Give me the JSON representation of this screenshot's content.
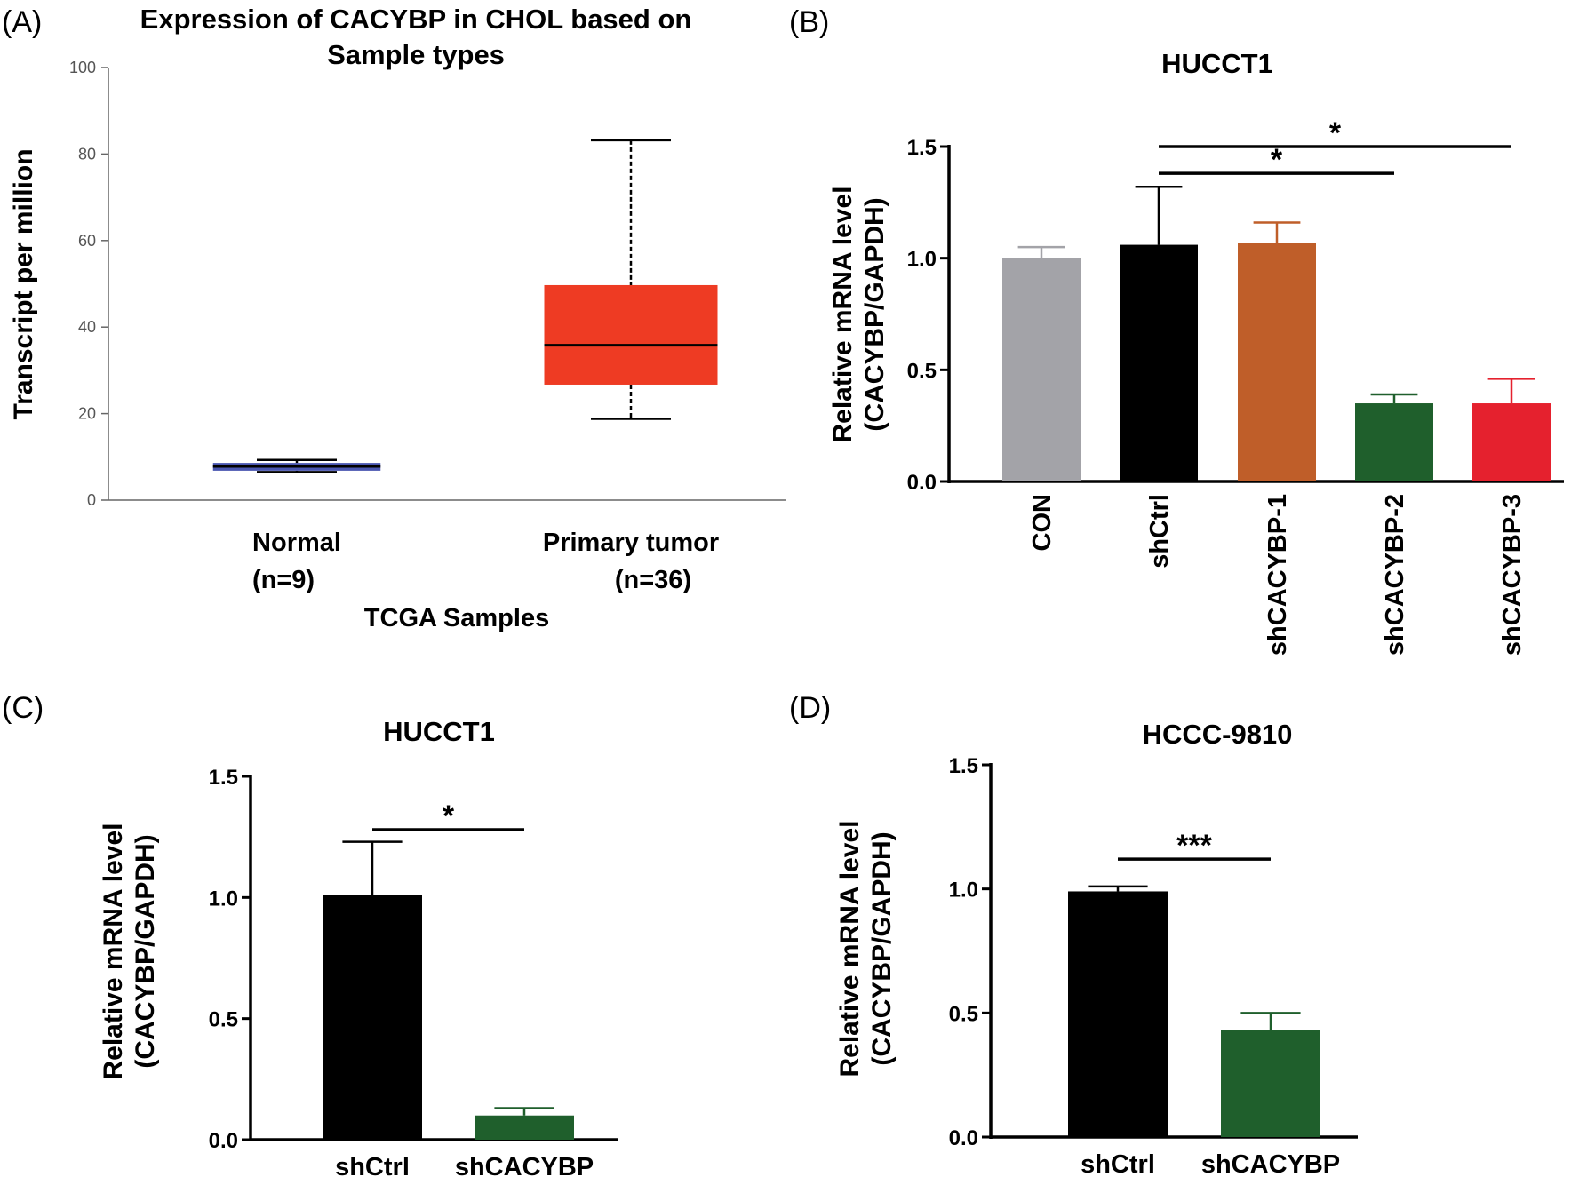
{
  "chart_data": [
    {
      "id": "A",
      "panel_label": "(A)",
      "type": "box",
      "title_lines": [
        "Expression of CACYBP in CHOL based on",
        "Sample types"
      ],
      "ylabel": "Transcript per million",
      "xlabel": "TCGA Samples",
      "ylim": [
        0,
        100
      ],
      "yticks": [
        "0",
        "20",
        "40",
        "60",
        "80",
        "100"
      ],
      "boxes": [
        {
          "name": "Normal",
          "n_label": "(n=9)",
          "min": 6.5,
          "q1": 6.8,
          "median": 7.8,
          "q3": 8.6,
          "max": 9.3,
          "color": "#4a56b0"
        },
        {
          "name": "Primary tumor",
          "n_label": "(n=36)",
          "min": 18.8,
          "q1": 26.7,
          "median": 35.8,
          "q3": 49.7,
          "max": 83.2,
          "color": "#ee3b23"
        }
      ]
    },
    {
      "id": "B",
      "panel_label": "(B)",
      "type": "bar",
      "title": "HUCCT1",
      "ylabel_lines": [
        "Relative mRNA level",
        "(CACYBP/GAPDH)"
      ],
      "ylim": [
        0,
        1.5
      ],
      "yticks": [
        "0.0",
        "0.5",
        "1.0",
        "1.5"
      ],
      "categories": [
        "CON",
        "shCtrl",
        "shCACYBP-1",
        "shCACYBP-2",
        "shCACYBP-3"
      ],
      "values": [
        1.0,
        1.06,
        1.07,
        0.35,
        0.35
      ],
      "errors": [
        0.05,
        0.26,
        0.09,
        0.04,
        0.11
      ],
      "colors": [
        "#a3a3a8",
        "#000000",
        "#bf5e29",
        "#1f5f2c",
        "#e5212e"
      ],
      "significance": [
        {
          "from": 1,
          "to": 4,
          "y": 1.5,
          "label": "*"
        },
        {
          "from": 1,
          "to": 3,
          "y": 1.38,
          "label": "*"
        }
      ]
    },
    {
      "id": "C",
      "panel_label": "(C)",
      "type": "bar",
      "title": "HUCCT1",
      "ylabel_lines": [
        "Relative mRNA level",
        "(CACYBP/GAPDH)"
      ],
      "ylim": [
        0,
        1.5
      ],
      "yticks": [
        "0.0",
        "0.5",
        "1.0",
        "1.5"
      ],
      "categories": [
        "shCtrl",
        "shCACYBP"
      ],
      "values": [
        1.01,
        0.1
      ],
      "errors": [
        0.22,
        0.03
      ],
      "colors": [
        "#000000",
        "#1f5f2c"
      ],
      "significance": [
        {
          "from": 0,
          "to": 1,
          "y": 1.28,
          "label": "*"
        }
      ]
    },
    {
      "id": "D",
      "panel_label": "(D)",
      "type": "bar",
      "title": "HCCC-9810",
      "ylabel_lines": [
        "Relative mRNA level",
        "(CACYBP/GAPDH)"
      ],
      "ylim": [
        0,
        1.5
      ],
      "yticks": [
        "0.0",
        "0.5",
        "1.0",
        "1.5"
      ],
      "categories": [
        "shCtrl",
        "shCACYBP"
      ],
      "values": [
        0.99,
        0.43
      ],
      "errors": [
        0.02,
        0.07
      ],
      "colors": [
        "#000000",
        "#1f5f2c"
      ],
      "significance": [
        {
          "from": 0,
          "to": 1,
          "y": 1.12,
          "label": "***"
        }
      ]
    }
  ]
}
